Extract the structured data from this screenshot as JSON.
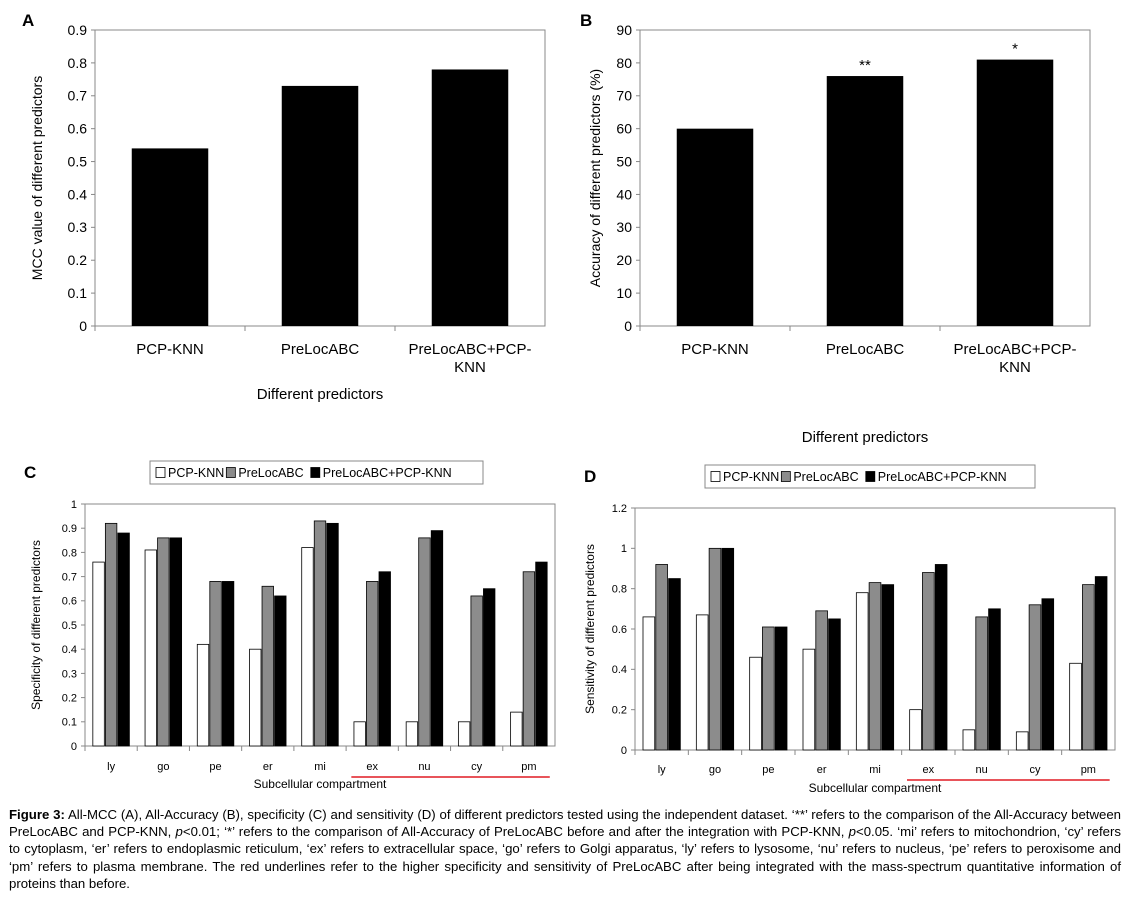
{
  "colors": {
    "black": "#000000",
    "gray": "#8c8c8c",
    "white": "#ffffff",
    "axis": "#888888",
    "underline": "#e01b24"
  },
  "chart_data": [
    {
      "id": "A",
      "panel_label": "A",
      "type": "bar",
      "categories": [
        [
          "PCP-KNN"
        ],
        [
          "PreLocABC"
        ],
        [
          "PreLocABC+PCP-",
          "KNN"
        ]
      ],
      "values": [
        0.54,
        0.73,
        0.78
      ],
      "xlabel": "Different predictors",
      "ylabel": "MCC value of different predictors",
      "ylim": [
        0,
        0.9
      ],
      "yticks": [
        "0",
        "0.1",
        "0.2",
        "0.3",
        "0.4",
        "0.5",
        "0.6",
        "0.7",
        "0.8",
        "0.9"
      ],
      "annotations": [
        "",
        "",
        ""
      ],
      "grid": false
    },
    {
      "id": "B",
      "panel_label": "B",
      "type": "bar",
      "categories": [
        [
          "PCP-KNN"
        ],
        [
          "PreLocABC"
        ],
        [
          "PreLocABC+PCP-",
          "KNN"
        ]
      ],
      "values": [
        60,
        76,
        81
      ],
      "xlabel": "Different predictors",
      "ylabel": "Accuracy of different predictors (%)",
      "ylim": [
        0,
        90
      ],
      "yticks": [
        "0",
        "10",
        "20",
        "30",
        "40",
        "50",
        "60",
        "70",
        "80",
        "90"
      ],
      "annotations": [
        "",
        "**",
        "*"
      ],
      "grid": false
    },
    {
      "id": "C",
      "panel_label": "C",
      "type": "bar",
      "categories": [
        "ly",
        "go",
        "pe",
        "er",
        "mi",
        "ex",
        "nu",
        "cy",
        "pm"
      ],
      "series": [
        {
          "name": "PCP-KNN",
          "fill": "white",
          "values": [
            0.76,
            0.81,
            0.42,
            0.4,
            0.82,
            0.1,
            0.1,
            0.1,
            0.14
          ]
        },
        {
          "name": "PreLocABC",
          "fill": "gray",
          "values": [
            0.92,
            0.86,
            0.68,
            0.66,
            0.93,
            0.68,
            0.86,
            0.62,
            0.72
          ]
        },
        {
          "name": "PreLocABC+PCP-KNN",
          "fill": "black",
          "values": [
            0.88,
            0.86,
            0.68,
            0.62,
            0.92,
            0.72,
            0.89,
            0.65,
            0.76
          ]
        }
      ],
      "xlabel": "Subcellular compartment",
      "ylabel": "Specificity of different predictors",
      "ylim": [
        0,
        1
      ],
      "yticks": [
        "0",
        "0.1",
        "0.2",
        "0.3",
        "0.4",
        "0.5",
        "0.6",
        "0.7",
        "0.8",
        "0.9",
        "1"
      ],
      "legend_placement": "top",
      "underline_categories": [
        "ex",
        "nu",
        "cy",
        "pm"
      ],
      "grid": false
    },
    {
      "id": "D",
      "panel_label": "D",
      "type": "bar",
      "categories": [
        "ly",
        "go",
        "pe",
        "er",
        "mi",
        "ex",
        "nu",
        "cy",
        "pm"
      ],
      "series": [
        {
          "name": "PCP-KNN",
          "fill": "white",
          "values": [
            0.66,
            0.67,
            0.46,
            0.5,
            0.78,
            0.2,
            0.1,
            0.09,
            0.43
          ]
        },
        {
          "name": "PreLocABC",
          "fill": "gray",
          "values": [
            0.92,
            1.0,
            0.61,
            0.69,
            0.83,
            0.88,
            0.66,
            0.72,
            0.82
          ]
        },
        {
          "name": "PreLocABC+PCP-KNN",
          "fill": "black",
          "values": [
            0.85,
            1.0,
            0.61,
            0.65,
            0.82,
            0.92,
            0.7,
            0.75,
            0.86
          ]
        }
      ],
      "xlabel": "Subcellular compartment",
      "ylabel": "Sensitivity of different predictors",
      "ylim": [
        0,
        1.2
      ],
      "yticks": [
        "0",
        "0.2",
        "0.4",
        "0.6",
        "0.8",
        "1",
        "1.2"
      ],
      "legend_placement": "top",
      "underline_categories": [
        "ex",
        "nu",
        "cy",
        "pm"
      ],
      "grid": false
    }
  ],
  "caption": {
    "label": "Figure 3:",
    "part1": " All-MCC (A), All-Accuracy (B), specificity (C) and sensitivity (D) of different predictors tested using the independent dataset. ‘**’ refers to the comparison of the All-Accuracy between PreLocABC and PCP-KNN, ",
    "p1": "p",
    "part2": "<0.01; ‘*’ refers to the comparison of All-Accuracy of PreLocABC before and after the integration with PCP-KNN, ",
    "p2": "p",
    "part3": "<0.05. ‘mi’ refers to mitochondrion, ‘cy’ refers to cytoplasm, ‘er’ refers to endoplasmic reticulum, ‘ex’ refers to extracellular space, ‘go’ refers to Golgi apparatus, ‘ly’ refers to lysosome, ‘nu’ refers to nucleus, ‘pe’ refers to peroxisome and ‘pm’ refers to plasma membrane. The red underlines refer to the higher specificity and sensitivity of PreLocABC after being integrated with the mass-spectrum quantitative information of proteins than before."
  }
}
